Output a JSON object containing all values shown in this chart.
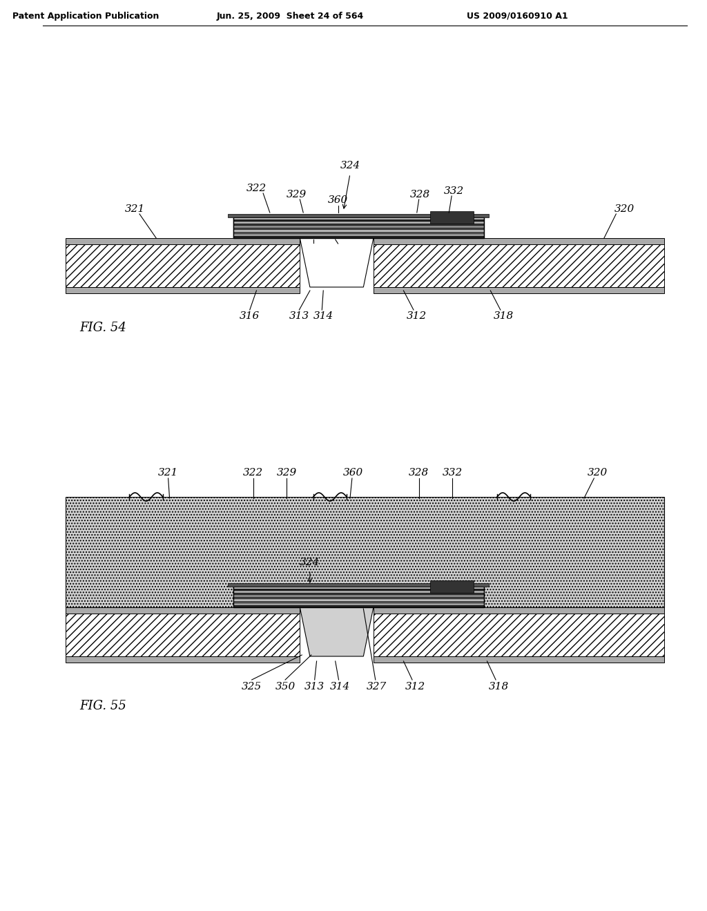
{
  "background_color": "#ffffff",
  "header_left": "Patent Application Publication",
  "header_mid": "Jun. 25, 2009  Sheet 24 of 564",
  "header_right": "US 2009/0160910 A1",
  "fig54_label": "FIG. 54",
  "fig55_label": "FIG. 55"
}
